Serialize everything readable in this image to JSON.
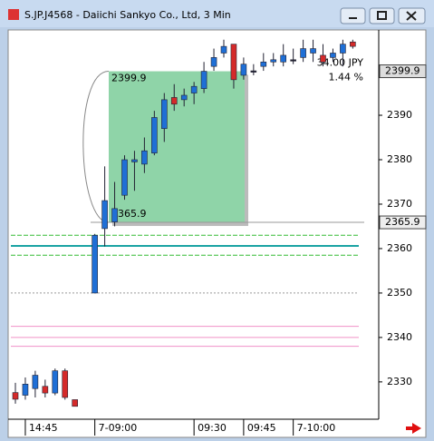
{
  "chart_data": {
    "type": "candlestick",
    "title": "S.JP.J4568 - Daiichi Sankyo Co., Ltd, 3 Min",
    "categories": [
      null,
      "14:45",
      null,
      null,
      null,
      null,
      null,
      "7-09:00",
      null,
      null,
      null,
      null,
      null,
      null,
      null,
      null,
      null,
      "09:30",
      null,
      null,
      null,
      null,
      "09:45",
      null,
      null,
      null,
      null,
      "7-10:00",
      null,
      null,
      null,
      null,
      null,
      null
    ],
    "open": [
      2327.6,
      2327.0,
      2328.5,
      2329.0,
      2327.5,
      2332.5,
      2326.0,
      2350.0,
      2364.5,
      2366.0,
      2372.0,
      2379.5,
      2379.0,
      2381.5,
      2387.0,
      2394.0,
      2393.5,
      2395.0,
      2396.0,
      2401.0,
      2404.0,
      2406.0,
      2399.0,
      2400.0,
      2401.0,
      2402.0,
      2402.0,
      2402.5,
      2403.0,
      2404.0,
      2403.5,
      2403.0,
      2404.0,
      2406.5
    ],
    "high": [
      2329.8,
      2331.0,
      2332.5,
      2330.5,
      2333.0,
      2333.0,
      2326.0,
      2363.3,
      2378.5,
      2375.0,
      2381.0,
      2382.0,
      2385.0,
      2391.0,
      2395.0,
      2397.0,
      2396.0,
      2397.5,
      2402.0,
      2405.0,
      2407.0,
      2406.0,
      2403.0,
      2401.5,
      2404.0,
      2404.0,
      2406.0,
      2405.0,
      2407.0,
      2407.0,
      2406.0,
      2405.0,
      2407.0,
      2407.0
    ],
    "low": [
      2325.1,
      2326.0,
      2326.5,
      2326.5,
      2327.0,
      2326.0,
      2324.5,
      2350.0,
      2360.5,
      2365.0,
      2371.0,
      2373.0,
      2377.0,
      2381.0,
      2384.0,
      2391.0,
      2392.0,
      2392.5,
      2395.0,
      2400.0,
      2403.0,
      2396.0,
      2398.0,
      2399.0,
      2400.0,
      2401.0,
      2401.0,
      2401.5,
      2402.0,
      2402.0,
      2401.0,
      2402.0,
      2401.0,
      2405.0
    ],
    "close": [
      2326.1,
      2329.5,
      2331.5,
      2327.5,
      2332.5,
      2326.5,
      2324.5,
      2363.0,
      2370.8,
      2369.0,
      2380.0,
      2380.0,
      2382.0,
      2389.5,
      2393.5,
      2392.5,
      2394.5,
      2396.5,
      2399.9,
      2403.0,
      2405.5,
      2398.0,
      2401.5,
      2400.0,
      2402.0,
      2402.5,
      2403.5,
      2402.5,
      2405.0,
      2405.0,
      2402.0,
      2404.0,
      2406.0,
      2405.5
    ],
    "up_color": "#1f6fd6",
    "down_color": "#d42a2a",
    "ylim": [
      2321.6,
      2409.2
    ],
    "yticks": [
      2330,
      2340,
      2350,
      2360,
      2370,
      2380,
      2390
    ],
    "price_tags": [
      2399.9,
      2365.9
    ],
    "levels": [
      {
        "value": 2365.9,
        "color": "#999999",
        "style": "solid"
      },
      {
        "value": 2350.0,
        "color": "#999999",
        "style": "dotted"
      },
      {
        "value": 2363.0,
        "color": "#33bb33",
        "style": "dashed"
      },
      {
        "value": 2360.6,
        "color": "#1aa3a3",
        "style": "solid"
      },
      {
        "value": 2358.5,
        "color": "#33bb33",
        "style": "dashed"
      },
      {
        "value": 2342.5,
        "color": "#f090c8",
        "style": "solid"
      },
      {
        "value": 2340.0,
        "color": "#f090c8",
        "style": "solid"
      },
      {
        "value": 2338.0,
        "color": "#f090c8",
        "style": "solid"
      }
    ],
    "range_box": {
      "top": 2399.9,
      "bottom": 2365.9,
      "color": "#8fd4a8",
      "change": "34.00 JPY",
      "percent": "1.44 %"
    }
  }
}
